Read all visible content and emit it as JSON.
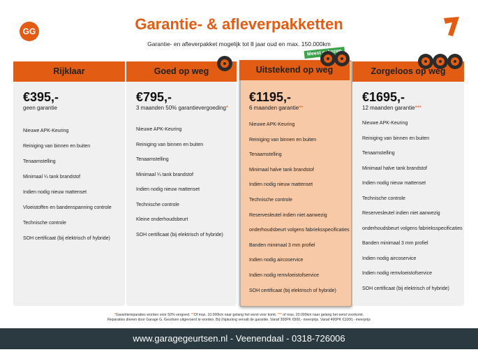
{
  "header": {
    "logo": "GG",
    "title": "Garantie- & afleverpakketten",
    "subtitle": "Garantie- en afleverpakket mogelijk tot 8 jaar oud en max. 150.000km",
    "badge": "Meest gekozen"
  },
  "packages": [
    {
      "name": "Rijklaar",
      "price": "€395,-",
      "note": "geen garantie",
      "features": [
        "Nieuwe APK-Keuring",
        "Reiniging van binnen en buiten",
        "Tenaamstelling",
        "Minimaal ¼  tank brandstof",
        "Indien nodig nieuw mattenset",
        "Vloeistoffen en bandenspanning controle",
        "Technische controle",
        "SOH certificaat (bij elektrisch of hybride)"
      ]
    },
    {
      "name": "Goed op weg",
      "price": "€795,-",
      "note": "3 maanden 50% garantievergoeding",
      "note_mark": "*",
      "features": [
        "Nieuwe APK-Keuring",
        "Reiniging van binnen en buiten",
        "Tenaamstelling",
        "Minimaal ¼ tank brandstof",
        "Indien nodig nieuw mattenset",
        "Technische controle",
        "Kleine onderhoudsbeurt",
        "SOH certificaat (bij elektrisch of hybride)"
      ]
    },
    {
      "name": "Uitstekend op weg",
      "price": "€1195,-",
      "note": "6 maanden garantie",
      "note_mark": "**",
      "features": [
        "Nieuwe APK-Keuring",
        "Reiniging van binnen en buiten",
        "Tenaamstelling",
        "Minimaal halve tank brandstof",
        "Indien nodig nieuw mattenset",
        "Technische controle",
        "Reservesleutel indien niet aanwezig",
        "onderhoudsbeurt volgens fabrieksspecificaties",
        "Banden minimaal 3 mm profiel",
        "Indien nodig aircoservice",
        "Indien nodig remvloeistofservice",
        "SOH certificaat (bij elektrisch of hybride)"
      ]
    },
    {
      "name": "Zorgeloos op weg",
      "price": "€1695,-",
      "note": "12 maanden garantie",
      "note_mark": "***",
      "features": [
        "Nieuwe APK-Keuring",
        "Reiniging van binnen en buiten",
        "Tenaamstelling",
        "Minimaal halve tank brandstof",
        "Indien nodig nieuw mattenset",
        "Technische controle",
        "Reservesleutel indien niet aanwezig",
        "onderhoudsbeurt volgens fabrieksspecificaties",
        "Banden minimaal 3 mm profiel",
        "Indien nodig aircoservice",
        "Indien nodig remvloeistofservice",
        "SOH certificaat (bij elektrisch of hybride)"
      ]
    }
  ],
  "footnote": {
    "line1": [
      {
        "mark": "*",
        "text": "Garantiereparaties worden voor 50% vergoed. "
      },
      {
        "mark": "**",
        "text": "Of max. 10.000km naar gelang het eerst voor komt. "
      },
      {
        "mark": "***",
        "text": " of max. 20.000km naar gelang het eerst voorkomt."
      }
    ],
    "line2": "Reparaties dienen door Garage G. Geurtsen uitgevoerd te worden. Bij chiptuning vervalt de garantie. Vanaf 300PK €500,- meerprijs. Vanaf 400PK €1000,- meerprijs"
  },
  "footer": {
    "text": "www.garagegeurtsen.nl - Veenendaal - 0318-726006"
  }
}
